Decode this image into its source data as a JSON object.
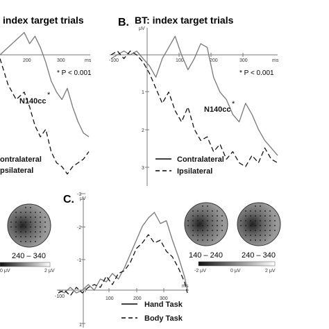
{
  "panel_a": {
    "title": "index target trials",
    "x_tick_labels": [
      "200",
      "300",
      "ms"
    ],
    "significance": "* P < 0.001",
    "component_label": "N140cc",
    "legend": [
      "ontralateral",
      "psilateral"
    ]
  },
  "panel_b": {
    "letter": "B.",
    "title": "BT: index target trials",
    "unit_label": "μV",
    "x_tick_labels": [
      "-100",
      "100",
      "200",
      "300",
      "ms"
    ],
    "y_tick_labels": [
      "1",
      "2",
      "3"
    ],
    "significance": "* P < 0.001",
    "component_label": "N140cc",
    "legend": [
      "Contralateral",
      "Ipsilateral"
    ]
  },
  "panel_c": {
    "letter": "C.",
    "unit_label": "μV",
    "x_tick_labels": [
      "-100",
      "100",
      "200",
      "300",
      "ms"
    ],
    "y_tick_labels": [
      "-3",
      "-2",
      "-1",
      "1"
    ],
    "legend": [
      "Hand Task",
      "Body Task"
    ]
  },
  "topo_left": {
    "maps": [
      {
        "label": "240 – 340"
      }
    ],
    "scale": [
      "0 μV",
      "2 μV"
    ]
  },
  "topo_right": {
    "maps": [
      {
        "label": "140 – 240"
      },
      {
        "label": "240 – 340"
      }
    ],
    "scale": [
      "-2 μV",
      "0 μV",
      "2 μV"
    ]
  },
  "chart_data": [
    {
      "type": "line",
      "title": "index target trials",
      "xlabel": "ms",
      "ylabel": "",
      "x_unit": "ms",
      "note": "cropped left edge; y axis inverted (negative up)",
      "series": [
        {
          "name": "Contralateral",
          "x": [
            70,
            100,
            130,
            160,
            180,
            200,
            220,
            240,
            260,
            280,
            300,
            320,
            340,
            360,
            380,
            400
          ],
          "y": [
            0.0,
            -0.2,
            -0.4,
            -0.6,
            -0.3,
            -0.5,
            -0.2,
            0.2,
            0.7,
            1.0,
            1.2,
            0.9,
            1.4,
            1.8,
            2.1,
            2.2
          ]
        },
        {
          "name": "Ipsilateral",
          "x": [
            70,
            100,
            130,
            160,
            180,
            200,
            220,
            240,
            260,
            280,
            300,
            320,
            340,
            360,
            380,
            400
          ],
          "y": [
            0.1,
            0.8,
            1.2,
            1.0,
            1.4,
            1.9,
            2.2,
            2.0,
            2.6,
            2.9,
            3.0,
            3.2,
            3.0,
            2.9,
            2.8,
            2.6
          ]
        }
      ]
    },
    {
      "type": "line",
      "title": "BT: index target trials",
      "xlabel": "ms",
      "ylabel": "μV",
      "xlim": [
        -100,
        420
      ],
      "ylim": [
        -0.5,
        3
      ],
      "y_inverted": true,
      "series": [
        {
          "name": "Contralateral",
          "x": [
            -100,
            -80,
            -60,
            -40,
            -20,
            0,
            20,
            40,
            60,
            80,
            100,
            120,
            140,
            160,
            180,
            200,
            220,
            240,
            260,
            280,
            300,
            320,
            340,
            360,
            380,
            400,
            420
          ],
          "y": [
            0.1,
            0.0,
            -0.1,
            0.0,
            -0.1,
            0.1,
            0.3,
            0.6,
            0.1,
            -0.2,
            -0.5,
            0.0,
            0.4,
            0.1,
            -0.3,
            -0.2,
            0.6,
            1.0,
            1.2,
            1.6,
            1.8,
            1.3,
            1.6,
            2.0,
            2.3,
            2.5,
            2.7
          ]
        },
        {
          "name": "Ipsilateral",
          "x": [
            -100,
            -80,
            -60,
            -40,
            -20,
            0,
            20,
            40,
            60,
            80,
            100,
            120,
            140,
            160,
            180,
            200,
            220,
            240,
            260,
            280,
            300,
            320,
            340,
            360,
            380,
            400,
            420
          ],
          "y": [
            0.0,
            -0.1,
            0.1,
            -0.1,
            0.0,
            0.2,
            0.5,
            0.9,
            1.3,
            1.0,
            1.5,
            1.8,
            1.4,
            2.0,
            2.3,
            2.2,
            2.6,
            2.4,
            2.8,
            2.6,
            2.9,
            3.0,
            2.7,
            2.9,
            2.5,
            2.8,
            2.9
          ]
        }
      ]
    },
    {
      "type": "line",
      "xlabel": "ms",
      "ylabel": "μV",
      "xlim": [
        -100,
        330
      ],
      "ylim": [
        -3,
        1
      ],
      "y_inverted": true,
      "series": [
        {
          "name": "Hand Task",
          "x": [
            -100,
            -80,
            -60,
            -40,
            -20,
            0,
            20,
            40,
            60,
            80,
            100,
            120,
            140,
            160,
            180,
            200,
            220,
            240,
            260,
            280,
            300,
            320,
            330
          ],
          "y": [
            0.0,
            0.1,
            -0.1,
            0.1,
            0.0,
            -0.2,
            0.0,
            -0.4,
            -0.3,
            -0.6,
            -0.4,
            -0.8,
            -1.3,
            -1.8,
            -2.3,
            -2.6,
            -2.8,
            -2.4,
            -2.5,
            -1.8,
            -1.2,
            -0.5,
            0.0
          ]
        },
        {
          "name": "Body Task",
          "x": [
            -100,
            -80,
            -60,
            -40,
            -20,
            0,
            20,
            40,
            60,
            80,
            100,
            120,
            140,
            160,
            180,
            200,
            220,
            240,
            260,
            280,
            300,
            320,
            330
          ],
          "y": [
            0.1,
            0.0,
            0.2,
            -0.1,
            0.1,
            -0.1,
            -0.2,
            -0.1,
            -0.5,
            -0.2,
            -0.6,
            -0.7,
            -1.0,
            -1.5,
            -1.7,
            -2.0,
            -1.7,
            -1.8,
            -1.4,
            -1.2,
            -0.8,
            -0.3,
            0.1
          ]
        }
      ]
    }
  ]
}
